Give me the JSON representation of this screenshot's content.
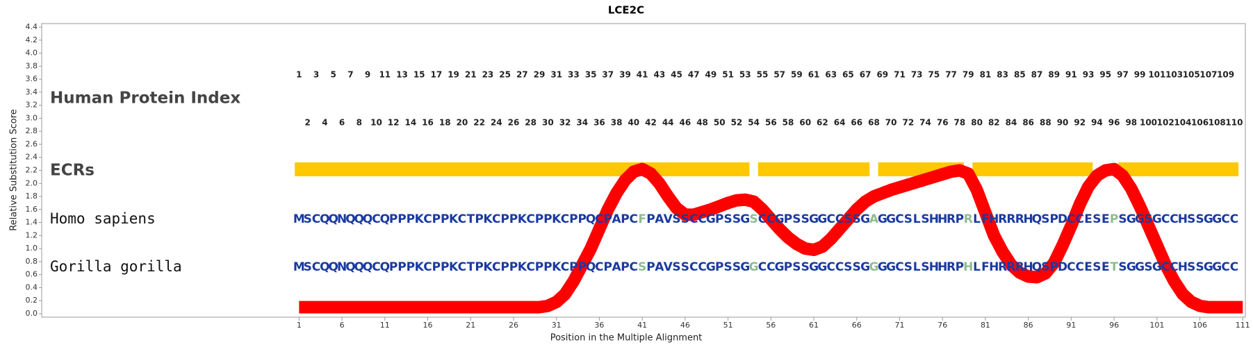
{
  "chart_data": {
    "type": "line",
    "title": "LCE2C",
    "xlabel": "Position in the Multiple Alignment",
    "ylabel": "Relative Substitution Score",
    "xlim": [
      -29,
      111.3
    ],
    "xticks": [
      1,
      6,
      11,
      16,
      21,
      26,
      31,
      36,
      41,
      46,
      51,
      56,
      61,
      66,
      71,
      76,
      81,
      86,
      91,
      96,
      101,
      106,
      111
    ],
    "ylim": [
      0,
      4.4
    ],
    "yticks": [
      {
        "value": 0,
        "label": "0.0"
      },
      0.2,
      0.4,
      0.6,
      0.8,
      {
        "value": 1,
        "label": "1.0"
      },
      1.2,
      1.4,
      1.6,
      1.8,
      {
        "value": 2,
        "label": "2.0"
      },
      2.2,
      2.4,
      2.6,
      2.8,
      {
        "value": 3,
        "label": "3.0"
      },
      3.2,
      3.4,
      3.6,
      3.8,
      {
        "value": 4,
        "label": "4.0"
      },
      4.2,
      4.4
    ],
    "color": "#ff0000",
    "x": [
      1,
      2,
      3,
      4,
      5,
      6,
      7,
      8,
      9,
      10,
      11,
      12,
      13,
      14,
      15,
      16,
      17,
      18,
      19,
      20,
      21,
      22,
      23,
      24,
      25,
      26,
      27,
      28,
      29,
      30,
      31,
      32,
      33,
      34,
      35,
      36,
      37,
      38,
      39,
      40,
      41,
      42,
      43,
      44,
      45,
      46,
      47,
      48,
      49,
      50,
      51,
      52,
      53,
      54,
      55,
      56,
      57,
      58,
      59,
      60,
      61,
      62,
      63,
      64,
      65,
      66,
      67,
      68,
      69,
      70,
      71,
      72,
      73,
      74,
      75,
      76,
      77,
      78,
      79,
      80,
      81,
      82,
      83,
      84,
      85,
      86,
      87,
      88,
      89,
      90,
      91,
      92,
      93,
      94,
      95,
      96,
      97,
      98,
      99,
      100,
      101,
      102,
      103,
      104,
      105,
      106,
      107,
      108,
      109,
      110,
      111
    ],
    "values": [
      0.1,
      0.1,
      0.1,
      0.1,
      0.1,
      0.1,
      0.1,
      0.1,
      0.1,
      0.1,
      0.1,
      0.1,
      0.1,
      0.1,
      0.1,
      0.1,
      0.1,
      0.1,
      0.1,
      0.1,
      0.1,
      0.1,
      0.1,
      0.1,
      0.1,
      0.1,
      0.1,
      0.1,
      0.1,
      0.12,
      0.18,
      0.3,
      0.5,
      0.75,
      1.0,
      1.3,
      1.6,
      1.85,
      2.05,
      2.18,
      2.22,
      2.15,
      2.0,
      1.8,
      1.62,
      1.52,
      1.52,
      1.56,
      1.6,
      1.65,
      1.7,
      1.74,
      1.75,
      1.72,
      1.6,
      1.45,
      1.3,
      1.17,
      1.07,
      1.0,
      0.98,
      1.03,
      1.15,
      1.3,
      1.45,
      1.6,
      1.72,
      1.8,
      1.85,
      1.9,
      1.94,
      1.98,
      2.02,
      2.06,
      2.1,
      2.14,
      2.18,
      2.2,
      2.15,
      1.9,
      1.55,
      1.2,
      0.95,
      0.75,
      0.63,
      0.57,
      0.56,
      0.62,
      0.78,
      1.05,
      1.35,
      1.68,
      1.95,
      2.12,
      2.2,
      2.22,
      2.12,
      1.92,
      1.65,
      1.35,
      1.05,
      0.75,
      0.5,
      0.3,
      0.18,
      0.12,
      0.1,
      0.1,
      0.1,
      0.1,
      0.1
    ],
    "tracks": {
      "index_label": "Human Protein Index",
      "protein_index": [
        1,
        2,
        3,
        4,
        5,
        6,
        7,
        8,
        9,
        10,
        11,
        12,
        13,
        14,
        15,
        16,
        17,
        18,
        19,
        20,
        21,
        22,
        23,
        24,
        25,
        26,
        27,
        28,
        29,
        30,
        31,
        32,
        33,
        34,
        35,
        36,
        37,
        38,
        39,
        40,
        41,
        42,
        43,
        44,
        45,
        46,
        47,
        48,
        49,
        50,
        51,
        52,
        53,
        54,
        55,
        56,
        57,
        58,
        59,
        60,
        61,
        62,
        63,
        64,
        65,
        66,
        67,
        68,
        69,
        70,
        71,
        72,
        73,
        74,
        75,
        76,
        77,
        78,
        79,
        80,
        81,
        82,
        83,
        84,
        85,
        86,
        87,
        88,
        89,
        90,
        91,
        92,
        93,
        94,
        95,
        96,
        97,
        98,
        99,
        100,
        101,
        102,
        103,
        104,
        105,
        106,
        107,
        108,
        109,
        110
      ],
      "ecr_label": "ECRs",
      "ecr_color": "#ffc800",
      "ecrs": [
        [
          1,
          53
        ],
        [
          55,
          67
        ],
        [
          69,
          78
        ],
        [
          80,
          93
        ],
        [
          97,
          110
        ]
      ],
      "residue_color": "#1a3aa0",
      "diff_color": "#8fbc8f",
      "sequences": [
        {
          "name": "Homo sapiens",
          "residues": [
            "M",
            "S",
            "C",
            "Q",
            "Q",
            "N",
            "Q",
            "Q",
            "Q",
            "C",
            "Q",
            "P",
            "P",
            "P",
            "K",
            "C",
            "P",
            "P",
            "K",
            "C",
            "T",
            "P",
            "K",
            "C",
            "P",
            "P",
            "K",
            "C",
            "P",
            "P",
            "K",
            "C",
            "P",
            "P",
            "Q",
            "C",
            "P",
            "A",
            "P",
            "C",
            "F",
            "P",
            "A",
            "V",
            "S",
            "S",
            "C",
            "C",
            "G",
            "P",
            "S",
            "S",
            "G",
            "S",
            "C",
            "C",
            "G",
            "P",
            "S",
            "S",
            "G",
            "G",
            "C",
            "C",
            "S",
            "S",
            "G",
            "A",
            "G",
            "G",
            "C",
            "S",
            "L",
            "S",
            "H",
            "H",
            "R",
            "P",
            "R",
            "L",
            "F",
            "H",
            "R",
            "R",
            "R",
            "H",
            "Q",
            "S",
            "P",
            "D",
            "C",
            "C",
            "E",
            "S",
            "E",
            "P",
            "S",
            "G",
            "G",
            "S",
            "G",
            "C",
            "C",
            "H",
            "S",
            "S",
            "G",
            "G",
            "C",
            "C"
          ]
        },
        {
          "name": "Gorilla gorilla",
          "residues": [
            "M",
            "S",
            "C",
            "Q",
            "Q",
            "N",
            "Q",
            "Q",
            "Q",
            "C",
            "Q",
            "P",
            "P",
            "P",
            "K",
            "C",
            "P",
            "P",
            "K",
            "C",
            "T",
            "P",
            "K",
            "C",
            "P",
            "P",
            "K",
            "C",
            "P",
            "P",
            "K",
            "C",
            "P",
            "P",
            "Q",
            "C",
            "P",
            "A",
            "P",
            "C",
            "S",
            "P",
            "A",
            "V",
            "S",
            "S",
            "C",
            "C",
            "G",
            "P",
            "S",
            "S",
            "G",
            "G",
            "C",
            "C",
            "G",
            "P",
            "S",
            "S",
            "G",
            "G",
            "C",
            "C",
            "S",
            "S",
            "G",
            "G",
            "G",
            "G",
            "C",
            "S",
            "L",
            "S",
            "H",
            "H",
            "R",
            "P",
            "H",
            "L",
            "F",
            "H",
            "R",
            "R",
            "R",
            "H",
            "Q",
            "S",
            "P",
            "D",
            "C",
            "C",
            "E",
            "S",
            "E",
            "T",
            "S",
            "G",
            "G",
            "S",
            "G",
            "C",
            "C",
            "H",
            "S",
            "S",
            "G",
            "G",
            "C",
            "C"
          ]
        }
      ]
    }
  }
}
